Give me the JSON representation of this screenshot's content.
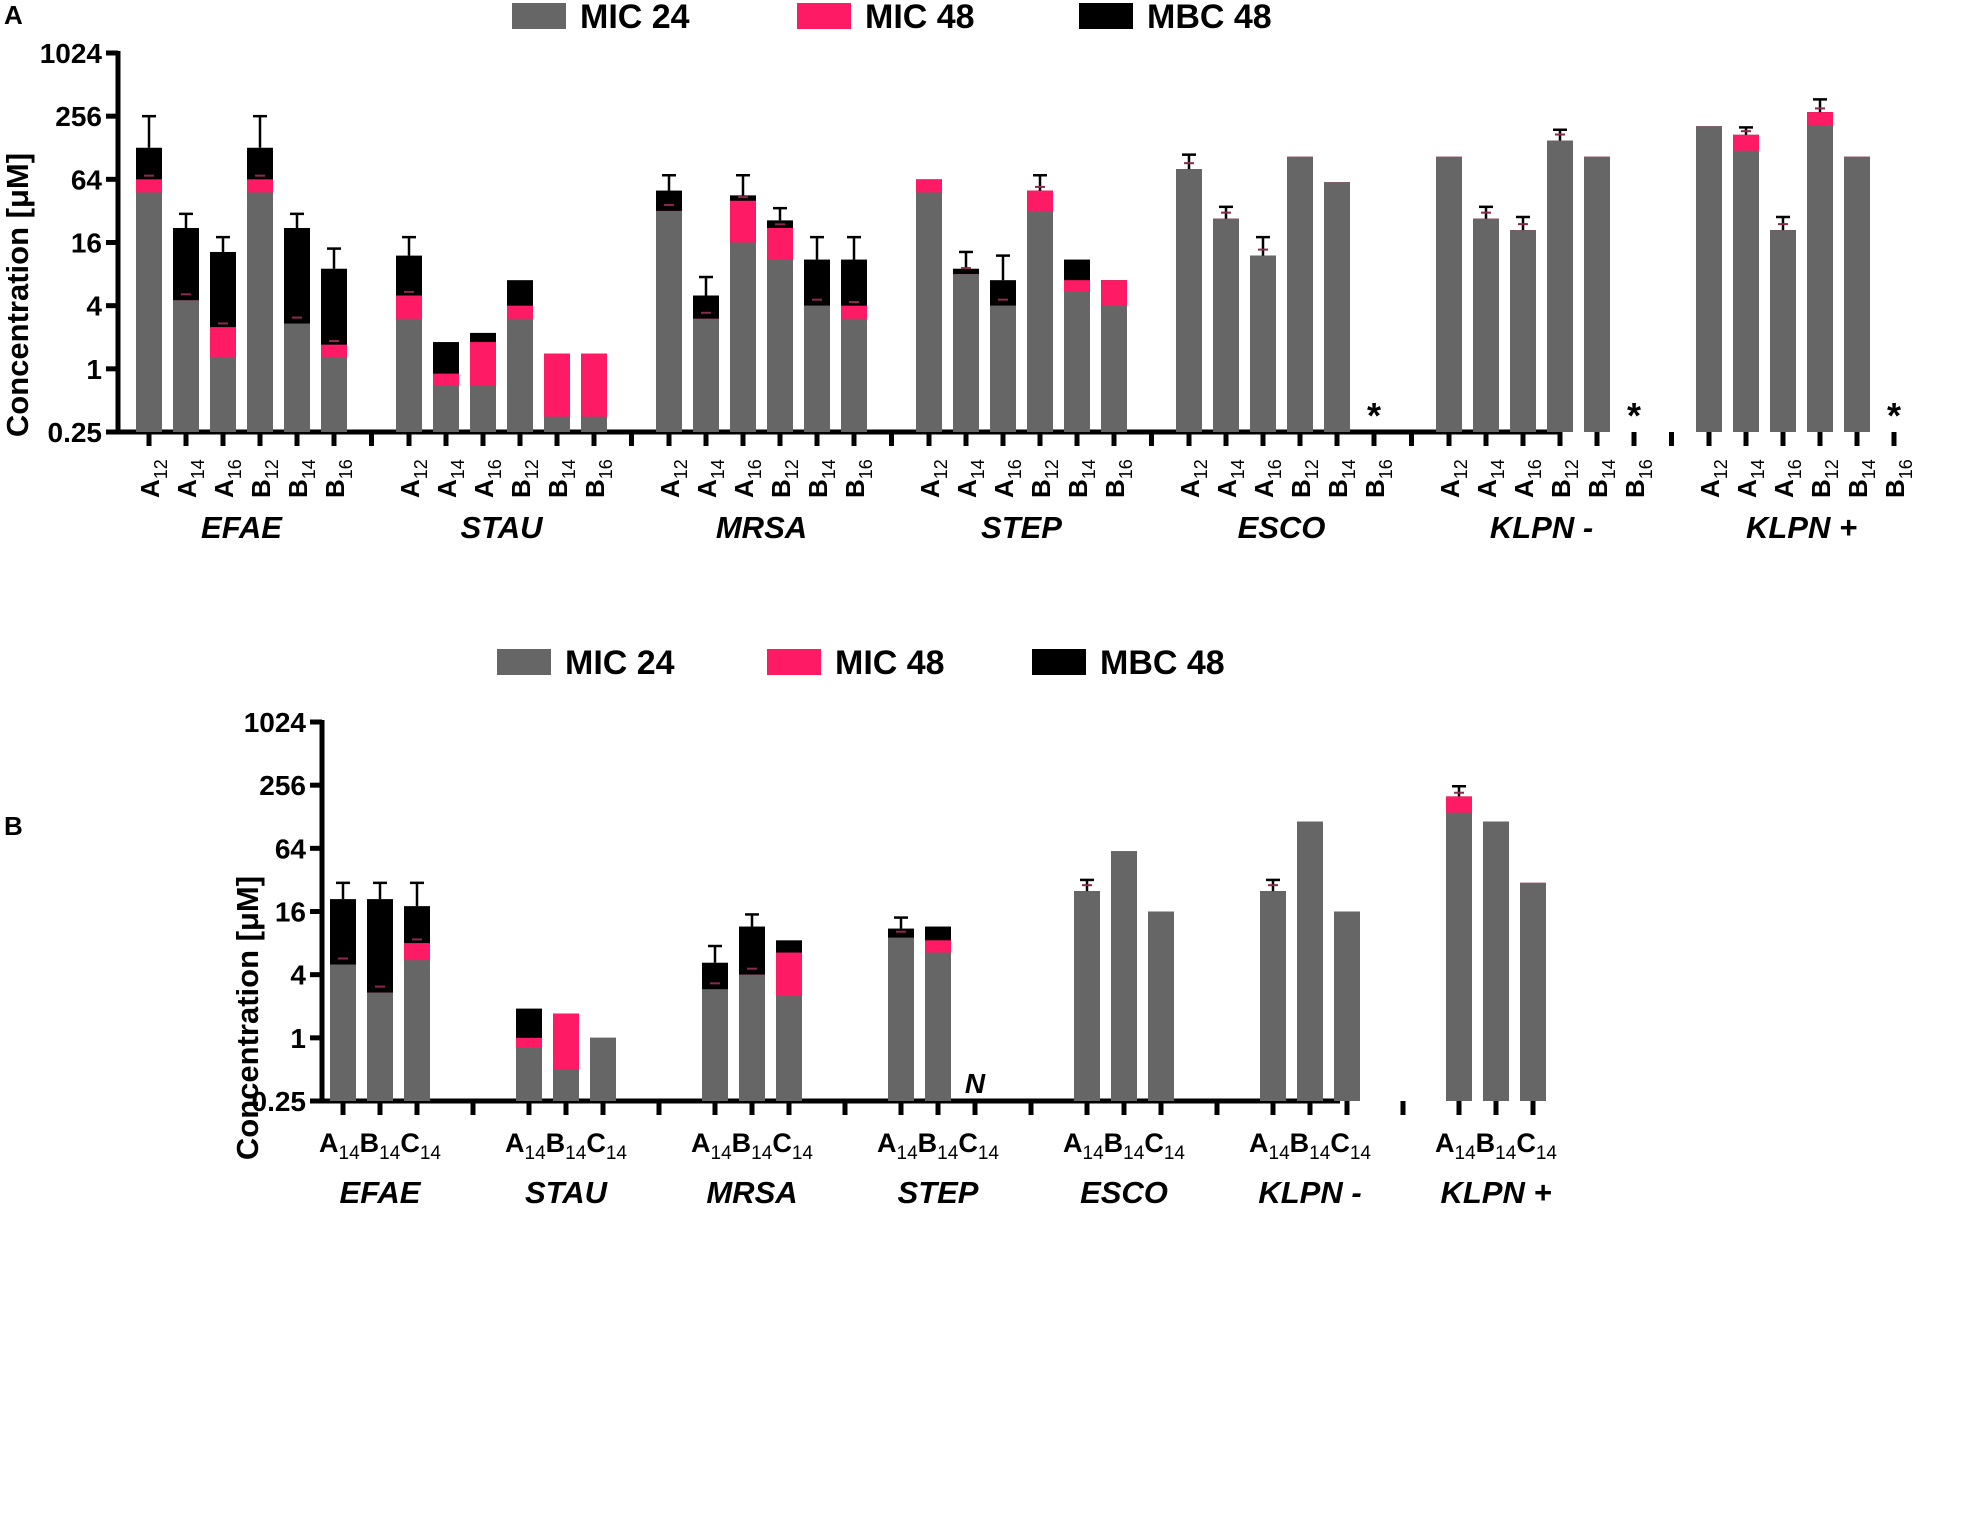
{
  "colors": {
    "mic24": "#666666",
    "mic48": "#ff1a66",
    "mbc48": "#000000"
  },
  "legend": [
    {
      "label": "MIC 24",
      "color": "#666666"
    },
    {
      "label": "MIC 48",
      "color": "#ff1a66"
    },
    {
      "label": "MBC 48",
      "color": "#000000"
    }
  ],
  "chart_data": [
    {
      "panel_label": "A",
      "type": "bar",
      "stacked": "overlay",
      "yscale": "log2",
      "ylabel": "Concentration [μM]",
      "ylim": [
        0.25,
        1024
      ],
      "yticks": [
        "0.25",
        "1",
        "4",
        "16",
        "64",
        "256",
        "1024"
      ],
      "ytick_values": [
        0.25,
        1,
        4,
        16,
        64,
        256,
        1024
      ],
      "groups": [
        {
          "name": "EFAE",
          "labels": [
            [
              "A",
              "12"
            ],
            [
              "A",
              "14"
            ],
            [
              "A",
              "16"
            ],
            [
              "B",
              "12"
            ],
            [
              "B",
              "14"
            ],
            [
              "B",
              "16"
            ]
          ],
          "mic24": [
            48,
            4.5,
            1.3,
            48,
            2.7,
            1.3
          ],
          "mic48": [
            64,
            4.5,
            2.5,
            64,
            2.7,
            1.7
          ],
          "mbc48": [
            128,
            22,
            13,
            128,
            22,
            9
          ],
          "err": [
            256,
            30,
            18,
            256,
            30,
            14
          ]
        },
        {
          "name": "STAU",
          "labels": [
            [
              "A",
              "12"
            ],
            [
              "A",
              "14"
            ],
            [
              "A",
              "16"
            ],
            [
              "B",
              "12"
            ],
            [
              "B",
              "14"
            ],
            [
              "B",
              "16"
            ]
          ],
          "mic24": [
            3,
            0.7,
            0.7,
            3,
            0.35,
            0.35
          ],
          "mic48": [
            5,
            0.9,
            1.8,
            4,
            1.4,
            1.4
          ],
          "mbc48": [
            12,
            1.8,
            2.2,
            7,
            1.4,
            1.4
          ],
          "err": [
            18,
            null,
            null,
            null,
            null,
            null
          ]
        },
        {
          "name": "MRSA",
          "labels": [
            [
              "A",
              "12"
            ],
            [
              "A",
              "14"
            ],
            [
              "A",
              "16"
            ],
            [
              "B",
              "12"
            ],
            [
              "B",
              "14"
            ],
            [
              "B",
              "16"
            ]
          ],
          "mic24": [
            32,
            3,
            16,
            11,
            4,
            3
          ],
          "mic48": [
            32,
            3,
            40,
            22,
            4,
            4
          ],
          "mbc48": [
            50,
            5,
            45,
            26,
            11,
            11
          ],
          "err": [
            70,
            7.5,
            70,
            34,
            18,
            18
          ]
        },
        {
          "name": "STEP",
          "labels": [
            [
              "A",
              "12"
            ],
            [
              "A",
              "14"
            ],
            [
              "A",
              "16"
            ],
            [
              "B",
              "12"
            ],
            [
              "B",
              "14"
            ],
            [
              "B",
              "16"
            ]
          ],
          "mic24": [
            48,
            8,
            4,
            32,
            5.5,
            4
          ],
          "mic48": [
            64,
            8,
            4,
            50,
            7,
            7
          ],
          "mbc48": [
            64,
            9,
            7,
            50,
            11,
            7
          ],
          "err": [
            null,
            13,
            12,
            70,
            null,
            null
          ]
        },
        {
          "name": "ESCO",
          "labels": [
            [
              "A",
              "12"
            ],
            [
              "A",
              "14"
            ],
            [
              "A",
              "16"
            ],
            [
              "B",
              "12"
            ],
            [
              "B",
              "14"
            ],
            [
              "B",
              "16"
            ]
          ],
          "mic24": [
            80,
            27,
            12,
            105,
            60,
            null
          ],
          "mic48": [
            80,
            27,
            12,
            105,
            60,
            null
          ],
          "mbc48": [
            80,
            27,
            12,
            105,
            60,
            null
          ],
          "err": [
            110,
            35,
            18,
            null,
            null,
            null
          ],
          "markers": [
            "",
            "",
            "",
            "",
            "",
            "*"
          ]
        },
        {
          "name": "KLPN -",
          "labels": [
            [
              "A",
              "12"
            ],
            [
              "A",
              "14"
            ],
            [
              "A",
              "16"
            ],
            [
              "B",
              "12"
            ],
            [
              "B",
              "14"
            ],
            [
              "B",
              "16"
            ]
          ],
          "mic24": [
            105,
            27,
            21,
            150,
            105,
            null
          ],
          "mic48": [
            105,
            27,
            21,
            150,
            105,
            null
          ],
          "mbc48": [
            105,
            27,
            21,
            150,
            105,
            null
          ],
          "err": [
            null,
            35,
            28,
            190,
            null,
            null
          ],
          "markers": [
            "",
            "",
            "",
            "",
            "",
            "*"
          ]
        },
        {
          "name": "KLPN +",
          "labels": [
            [
              "A",
              "12"
            ],
            [
              "A",
              "14"
            ],
            [
              "A",
              "16"
            ],
            [
              "B",
              "12"
            ],
            [
              "B",
              "14"
            ],
            [
              "B",
              "16"
            ]
          ],
          "mic24": [
            205,
            120,
            21,
            210,
            105,
            null
          ],
          "mic48": [
            205,
            170,
            21,
            280,
            105,
            null
          ],
          "mbc48": [
            205,
            170,
            21,
            280,
            105,
            null
          ],
          "err": [
            null,
            200,
            28,
            370,
            null,
            null
          ],
          "markers": [
            "",
            "",
            "",
            "",
            "",
            "*"
          ]
        }
      ]
    },
    {
      "panel_label": "B",
      "type": "bar",
      "stacked": "overlay",
      "yscale": "log2",
      "ylabel": "Concentration [μM]",
      "ylim": [
        0.25,
        1024
      ],
      "yticks": [
        "0.25",
        "1",
        "4",
        "16",
        "64",
        "256",
        "1024"
      ],
      "ytick_values": [
        0.25,
        1,
        4,
        16,
        64,
        256,
        1024
      ],
      "groups": [
        {
          "name": "EFAE",
          "labels": [
            [
              "A",
              "14"
            ],
            [
              "B",
              "14"
            ],
            [
              "C",
              "14"
            ]
          ],
          "mic24": [
            5,
            2.7,
            5.5
          ],
          "mic48": [
            5,
            2.7,
            8
          ],
          "mbc48": [
            21,
            21,
            18
          ],
          "err": [
            30,
            30,
            30
          ]
        },
        {
          "name": "STAU",
          "labels": [
            [
              "A",
              "14"
            ],
            [
              "B",
              "14"
            ],
            [
              "C",
              "14"
            ]
          ],
          "mic24": [
            0.8,
            0.5,
            1
          ],
          "mic48": [
            1,
            1.7,
            1
          ],
          "mbc48": [
            1.9,
            1.7,
            1
          ],
          "err": [
            null,
            null,
            null
          ]
        },
        {
          "name": "MRSA",
          "labels": [
            [
              "A",
              "14"
            ],
            [
              "B",
              "14"
            ],
            [
              "C",
              "14"
            ]
          ],
          "mic24": [
            2.9,
            4,
            2.5
          ],
          "mic48": [
            2.9,
            4,
            6.5
          ],
          "mbc48": [
            5.2,
            11.5,
            8.5
          ],
          "err": [
            7.5,
            15,
            null
          ]
        },
        {
          "name": "STEP",
          "labels": [
            [
              "A",
              "14"
            ],
            [
              "B",
              "14"
            ],
            [
              "C",
              "14"
            ]
          ],
          "mic24": [
            9,
            6.5,
            null
          ],
          "mic48": [
            9,
            8.5,
            null
          ],
          "mbc48": [
            11,
            11.5,
            null
          ],
          "err": [
            14,
            null,
            null
          ],
          "markers": [
            "",
            "",
            "N"
          ]
        },
        {
          "name": "ESCO",
          "labels": [
            [
              "A",
              "14"
            ],
            [
              "B",
              "14"
            ],
            [
              "C",
              "14"
            ]
          ],
          "mic24": [
            25,
            60,
            16
          ],
          "mic48": [
            25,
            60,
            16
          ],
          "mbc48": [
            25,
            60,
            16
          ],
          "err": [
            32,
            null,
            null
          ]
        },
        {
          "name": "KLPN -",
          "labels": [
            [
              "A",
              "14"
            ],
            [
              "B",
              "14"
            ],
            [
              "C",
              "14"
            ]
          ],
          "mic24": [
            25,
            115,
            16
          ],
          "mic48": [
            25,
            115,
            16
          ],
          "mbc48": [
            25,
            115,
            16
          ],
          "err": [
            32,
            null,
            null
          ]
        },
        {
          "name": "KLPN +",
          "labels": [
            [
              "A",
              "14"
            ],
            [
              "B",
              "14"
            ],
            [
              "C",
              "14"
            ]
          ],
          "mic24": [
            140,
            115,
            30
          ],
          "mic48": [
            200,
            115,
            30
          ],
          "mbc48": [
            200,
            115,
            30
          ],
          "err": [
            250,
            null,
            null
          ]
        }
      ]
    }
  ]
}
